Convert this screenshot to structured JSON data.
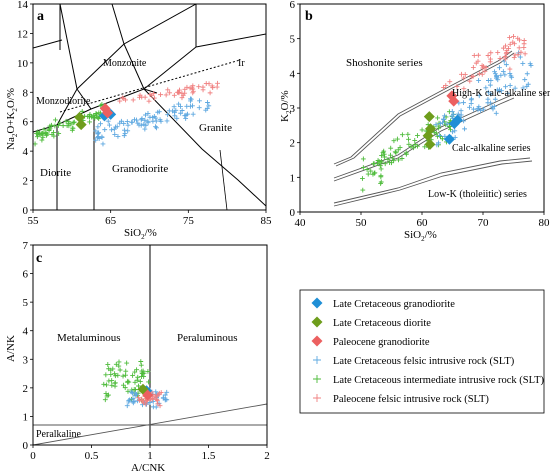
{
  "colors": {
    "late_cret_grano": "#1f8fd6",
    "late_cret_diorite": "#6e9d1c",
    "paleocene_grano": "#ec6060",
    "slt_late_felsic": "#5ea8e0",
    "slt_late_intermediate": "#4dbb3a",
    "slt_paleocene_felsic": "#f08080"
  },
  "legend": {
    "items": [
      {
        "label": "Late Cretaceous granodiorite",
        "marker": "diamond",
        "color": "#1f8fd6"
      },
      {
        "label": "Late Cretaceous diorite",
        "marker": "diamond",
        "color": "#6e9d1c"
      },
      {
        "label": "Paleocene granodiorite",
        "marker": "diamond",
        "color": "#ec6060"
      },
      {
        "label": "Late Cretaceous felsic intrusive rock (SLT)",
        "marker": "plus",
        "color": "#5ea8e0"
      },
      {
        "label": "Late Cretaceous intermediate intrusive rock (SLT)",
        "marker": "plus",
        "color": "#4dbb3a"
      },
      {
        "label": "Paleocene felsic intrusive rock (SLT)",
        "marker": "plus",
        "color": "#f08080"
      }
    ]
  },
  "chart_data": [
    {
      "panel": "a",
      "type": "scatter",
      "xlabel": "SiO2/%",
      "ylabel": "Na2O+K2O/%",
      "xlim": [
        55,
        85
      ],
      "ylim": [
        0,
        14
      ],
      "x_ticks": [
        55,
        65,
        75,
        85
      ],
      "y_ticks": [
        0,
        2,
        4,
        6,
        8,
        10,
        12,
        14
      ],
      "field_labels": [
        "Monzonite",
        "Monzodiorite",
        "Ir",
        "Diorite",
        "Granodiorite",
        "Granite"
      ],
      "series": [
        {
          "key": "late_cret_grano",
          "points": [
            [
              64.2,
              6.4
            ],
            [
              65.0,
              6.5
            ]
          ]
        },
        {
          "key": "late_cret_diorite",
          "points": [
            [
              61.0,
              6.3
            ],
            [
              61.2,
              5.8
            ]
          ]
        },
        {
          "key": "paleocene_grano",
          "points": [
            [
              64.3,
              6.9
            ],
            [
              64.6,
              6.6
            ]
          ]
        }
      ],
      "slt_clouds": [
        {
          "key": "slt_late_intermediate",
          "x_range": [
            55.2,
            64
          ],
          "y_range": [
            4.5,
            7.2
          ],
          "n": 70
        },
        {
          "key": "slt_late_felsic",
          "x_range": [
            63,
            78
          ],
          "y_range": [
            4.4,
            8.0
          ],
          "n": 90
        },
        {
          "key": "slt_paleocene_felsic",
          "x_range": [
            66,
            79
          ],
          "y_range": [
            7.0,
            8.8
          ],
          "n": 45
        }
      ]
    },
    {
      "panel": "b",
      "type": "scatter",
      "xlabel": "SiO2/%",
      "ylabel": "K2O/%",
      "xlim": [
        40,
        80
      ],
      "ylim": [
        0,
        6
      ],
      "x_ticks": [
        40,
        50,
        60,
        70,
        80
      ],
      "y_ticks": [
        0,
        1,
        2,
        3,
        4,
        5,
        6
      ],
      "field_labels": [
        "Shoshonite series",
        "High-K calc-alkaline series",
        "Calc-alkaline series",
        "Low-K (tholeiitic) series"
      ],
      "series": [
        {
          "key": "late_cret_grano",
          "points": [
            [
              64.5,
              2.1
            ],
            [
              65.3,
              2.55
            ],
            [
              65.8,
              2.65
            ]
          ]
        },
        {
          "key": "late_cret_diorite",
          "points": [
            [
              61.2,
              2.75
            ],
            [
              61.4,
              2.4
            ],
            [
              61.0,
              2.2
            ],
            [
              61.3,
              1.95
            ]
          ]
        },
        {
          "key": "paleocene_grano",
          "points": [
            [
              64.9,
              3.35
            ],
            [
              65.2,
              3.2
            ]
          ]
        }
      ],
      "slt_clouds": [
        {
          "key": "slt_late_intermediate",
          "x_range": [
            50,
            66
          ],
          "y_range": [
            0.5,
            3.2
          ],
          "n": 90
        },
        {
          "key": "slt_late_felsic",
          "x_range": [
            62,
            78
          ],
          "y_range": [
            1.6,
            5.0
          ],
          "n": 90
        },
        {
          "key": "slt_paleocene_felsic",
          "x_range": [
            63,
            77
          ],
          "y_range": [
            3.0,
            5.4
          ],
          "n": 55
        }
      ]
    },
    {
      "panel": "c",
      "type": "scatter",
      "xlabel": "A/CNK",
      "ylabel": "A/NK",
      "xlim": [
        0,
        2
      ],
      "ylim": [
        0,
        7
      ],
      "x_ticks": [
        0,
        0.5,
        1,
        1.5,
        2
      ],
      "y_ticks": [
        0,
        1,
        2,
        3,
        4,
        5,
        6,
        7
      ],
      "field_labels": [
        "Metaluminous",
        "Peraluminous",
        "Peralkaline"
      ],
      "series": [
        {
          "key": "late_cret_grano",
          "points": [
            [
              0.97,
              1.9
            ]
          ]
        },
        {
          "key": "late_cret_diorite",
          "points": [
            [
              0.94,
              1.95
            ]
          ]
        },
        {
          "key": "paleocene_grano",
          "points": [
            [
              0.98,
              1.75
            ]
          ]
        }
      ],
      "slt_clouds": [
        {
          "key": "slt_late_intermediate",
          "x_range": [
            0.6,
            1.0
          ],
          "y_range": [
            1.5,
            3.0
          ],
          "n": 65
        },
        {
          "key": "slt_late_felsic",
          "x_range": [
            0.8,
            1.15
          ],
          "y_range": [
            1.2,
            2.0
          ],
          "n": 45
        },
        {
          "key": "slt_paleocene_felsic",
          "x_range": [
            0.9,
            1.1
          ],
          "y_range": [
            1.3,
            1.9
          ],
          "n": 30
        }
      ]
    }
  ]
}
